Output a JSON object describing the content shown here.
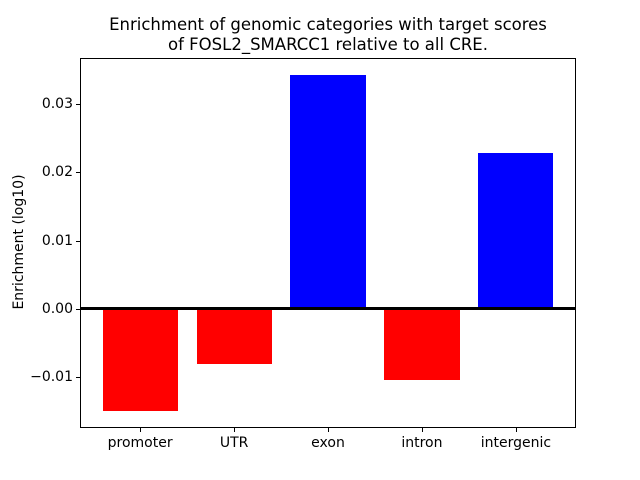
{
  "figure": {
    "background": "#ffffff",
    "spine_color": "#000000",
    "text_color": "#000000"
  },
  "chart_data": {
    "type": "bar",
    "title": "Enrichment of genomic categories with target scores\nof FOSL2_SMARCC1 relative to all CRE.",
    "title_lines": [
      "Enrichment of genomic categories with target scores",
      "of FOSL2_SMARCC1 relative to all CRE."
    ],
    "ylabel": "Enrichment (log10)",
    "xlabel": "",
    "categories": [
      "promoter",
      "UTR",
      "exon",
      "intron",
      "intergenic"
    ],
    "values": [
      -0.015,
      -0.0081,
      0.0344,
      -0.0105,
      0.0228
    ],
    "bar_colors": [
      "#ff0000",
      "#ff0000",
      "#0000ff",
      "#ff0000",
      "#0000ff"
    ],
    "positive_color": "#0000ff",
    "negative_color": "#ff0000",
    "ylim": [
      -0.0175,
      0.0369
    ],
    "yticks": [
      -0.01,
      0,
      0.01,
      0.02,
      0.03
    ],
    "ytick_labels": [
      "−0.01",
      "0.00",
      "0.01",
      "0.02",
      "0.03"
    ],
    "bar_width_fraction": 0.8,
    "x_margin": 0.24,
    "zero_line": true,
    "grid": false
  }
}
